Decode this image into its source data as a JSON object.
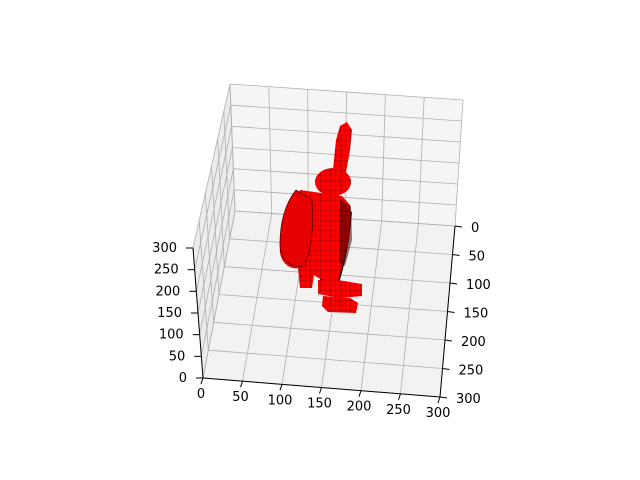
{
  "chart_data": {
    "type": "voxel3d",
    "title": "",
    "xlabel": "",
    "ylabel": "",
    "zlabel": "",
    "grid": true,
    "axes": {
      "x": {
        "range": [
          0,
          300
        ],
        "ticks": [
          0,
          50,
          100,
          150,
          200,
          250,
          300
        ]
      },
      "y": {
        "range": [
          0,
          300
        ],
        "ticks": [
          0,
          50,
          100,
          150,
          200,
          250,
          300
        ]
      },
      "z": {
        "range": [
          0,
          300
        ],
        "ticks": [
          0,
          50,
          100,
          150,
          200,
          250,
          300
        ]
      }
    },
    "tick_labels": {
      "x": [
        "0",
        "50",
        "100",
        "150",
        "200",
        "250",
        "300"
      ],
      "y": [
        "0",
        "50",
        "100",
        "150",
        "200",
        "250",
        "300"
      ],
      "z": [
        "0",
        "50",
        "100",
        "150",
        "200",
        "250",
        "300"
      ]
    },
    "object": {
      "name": "red voxel figure",
      "face_color": "#ff0000",
      "edge_color": "#1a0000"
    },
    "pane_color": "#f2f2f2",
    "grid_color": "#b0b0b0"
  }
}
